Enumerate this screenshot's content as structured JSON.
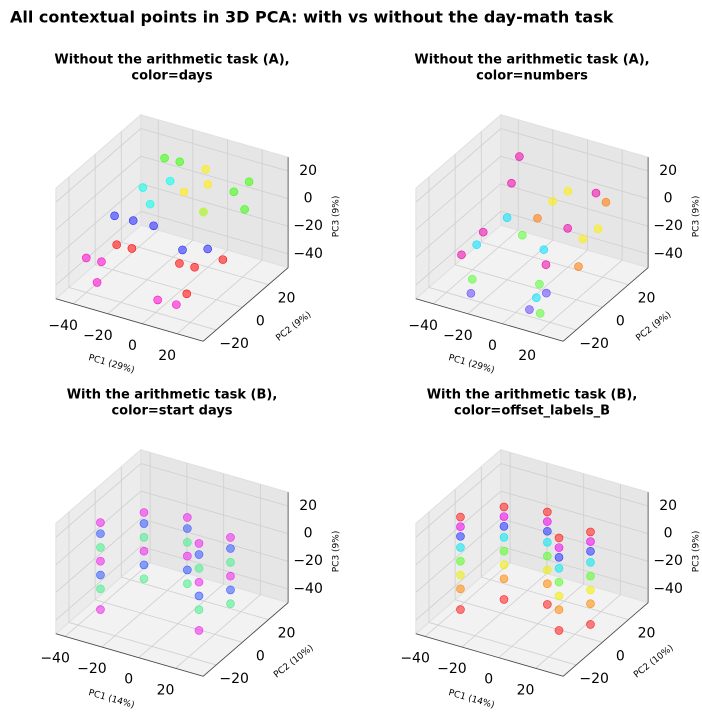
{
  "title": "All contextual points in 3D PCA: with vs without the day-math task",
  "chart_data": [
    {
      "type": "scatter3d",
      "title": [
        "Without the arithmetic task (A),",
        "color=days"
      ],
      "xlabel": "PC1 (29%)",
      "ylabel": "PC2 (9%)",
      "zlabel": "PC3 (9%)",
      "xlim": [
        -50,
        35
      ],
      "ylim": [
        -30,
        35
      ],
      "zlim": [
        -50,
        30
      ],
      "xticks": [
        {
          "value": -40,
          "label": "−40"
        },
        {
          "value": -20,
          "label": "−20"
        },
        0,
        20
      ],
      "yticks": [
        {
          "value": -20,
          "label": "−20"
        },
        0,
        20
      ],
      "zticks": [
        {
          "value": -40,
          "label": "−40"
        },
        {
          "value": -20,
          "label": "−20"
        },
        0,
        20
      ],
      "series": [
        {
          "color": "#ff0000",
          "x": [
            -30,
            -25,
            10,
            15,
            20,
            18
          ],
          "y": [
            -10,
            -5,
            -15,
            -10,
            5,
            -20
          ],
          "z": [
            -20,
            -25,
            -15,
            -20,
            -25,
            -30
          ]
        },
        {
          "color": "#ff00cc",
          "x": [
            -40,
            -35,
            5,
            12,
            -30
          ],
          "y": [
            -20,
            -15,
            -25,
            -20,
            -25
          ],
          "z": [
            -25,
            -30,
            -35,
            -40,
            -35
          ]
        },
        {
          "color": "#2020ff",
          "x": [
            -35,
            -28,
            8,
            15,
            -20
          ],
          "y": [
            -5,
            0,
            -10,
            0,
            5
          ],
          "z": [
            -5,
            -10,
            -10,
            -15,
            -15
          ]
        },
        {
          "color": "#00ffee",
          "x": [
            -30,
            -22,
            -18,
            5
          ],
          "y": [
            10,
            5,
            15,
            10
          ],
          "z": [
            5,
            0,
            10,
            0
          ]
        },
        {
          "color": "#33ff00",
          "x": [
            -25,
            -20,
            15,
            20,
            25
          ],
          "y": [
            20,
            25,
            20,
            25,
            15
          ],
          "z": [
            20,
            15,
            10,
            15,
            5
          ]
        },
        {
          "color": "#ffee00",
          "x": [
            -10,
            0,
            5,
            -5
          ],
          "y": [
            15,
            20,
            10,
            25
          ],
          "z": [
            5,
            10,
            0,
            15
          ]
        }
      ]
    },
    {
      "type": "scatter3d",
      "title": [
        "Without the arithmetic task (A),",
        "color=numbers"
      ],
      "xlabel": "PC1 (29%)",
      "ylabel": "PC2 (9%)",
      "zlabel": "PC3 (9%)",
      "xlim": [
        -50,
        35
      ],
      "ylim": [
        -30,
        35
      ],
      "zlim": [
        -50,
        30
      ],
      "xticks": [
        {
          "value": -40,
          "label": "−40"
        },
        {
          "value": -20,
          "label": "−20"
        },
        0,
        20
      ],
      "yticks": [
        {
          "value": -20,
          "label": "−20"
        },
        0,
        20
      ],
      "zticks": [
        {
          "value": -40,
          "label": "−40"
        },
        {
          "value": -20,
          "label": "−20"
        },
        0,
        20
      ],
      "series": [
        {
          "color": "#ee00aa",
          "x": [
            -35,
            -30,
            -25,
            10,
            15,
            20,
            -28
          ],
          "y": [
            -15,
            -5,
            10,
            -10,
            0,
            15,
            20
          ],
          "z": [
            -25,
            -15,
            10,
            -20,
            0,
            15,
            20
          ]
        },
        {
          "color": "#00e0ff",
          "x": [
            -30,
            -20,
            12,
            5
          ],
          "y": [
            -10,
            0,
            -20,
            -5
          ],
          "z": [
            -20,
            -5,
            -35,
            -15
          ]
        },
        {
          "color": "#ffee00",
          "x": [
            -5,
            0,
            20,
            25
          ],
          "y": [
            15,
            20,
            5,
            10
          ],
          "z": [
            0,
            5,
            -10,
            -5
          ]
        },
        {
          "color": "#55ff33",
          "x": [
            -25,
            10,
            18,
            -15
          ],
          "y": [
            -20,
            -15,
            -25,
            5
          ],
          "z": [
            -35,
            -30,
            -40,
            -20
          ]
        },
        {
          "color": "#ff7700",
          "x": [
            -10,
            25,
            22
          ],
          "y": [
            10,
            -5,
            20
          ],
          "z": [
            -10,
            -20,
            5
          ]
        },
        {
          "color": "#6644ff",
          "x": [
            -22,
            8,
            14
          ],
          "y": [
            -25,
            -20,
            -15
          ],
          "z": [
            -40,
            -45,
            -35
          ]
        }
      ]
    },
    {
      "type": "scatter3d",
      "title": [
        "With the arithmetic task (B),",
        "color=start days"
      ],
      "xlabel": "PC1 (14%)",
      "ylabel": "PC2 (10%)",
      "zlabel": "PC3 (9%)",
      "xlim": [
        -45,
        35
      ],
      "ylim": [
        -30,
        35
      ],
      "zlim": [
        -50,
        30
      ],
      "xticks": [
        {
          "value": -40,
          "label": "−40"
        },
        {
          "value": -20,
          "label": "−20"
        },
        0,
        20
      ],
      "yticks": [
        {
          "value": -20,
          "label": "−20"
        },
        0,
        20
      ],
      "zticks": [
        {
          "value": -40,
          "label": "−40"
        },
        {
          "value": -20,
          "label": "−20"
        },
        0,
        20
      ],
      "series": [
        {
          "color": "#3355ff",
          "x": [
            -35,
            -22,
            -2,
            15,
            25,
            -35,
            -22,
            -2,
            15,
            25
          ],
          "y": [
            -10,
            5,
            10,
            -5,
            5,
            -10,
            5,
            10,
            -5,
            5
          ],
          "z": [
            10,
            10,
            10,
            10,
            10,
            -20,
            -20,
            -20,
            -20,
            -20
          ]
        },
        {
          "color": "#ee22ee",
          "x": [
            -35,
            -22,
            -2,
            15,
            25,
            -35,
            -22,
            -2,
            15,
            25,
            -35,
            15
          ],
          "y": [
            -10,
            5,
            10,
            -5,
            5,
            -10,
            5,
            10,
            -5,
            5,
            -10,
            -5
          ],
          "z": [
            18,
            18,
            18,
            18,
            18,
            -10,
            -10,
            -10,
            -10,
            -10,
            -45,
            -45
          ]
        },
        {
          "color": "#44ee88",
          "x": [
            -35,
            -22,
            -2,
            15,
            25,
            -35,
            -22,
            -2,
            15,
            25
          ],
          "y": [
            -10,
            5,
            10,
            -5,
            5,
            -10,
            5,
            10,
            -5,
            5
          ],
          "z": [
            0,
            0,
            0,
            0,
            0,
            -30,
            -30,
            -30,
            -30,
            -30
          ]
        }
      ]
    },
    {
      "type": "scatter3d",
      "title": [
        "With the arithmetic task (B),",
        "color=offset_labels_B"
      ],
      "xlabel": "PC1 (14%)",
      "ylabel": "PC2 (10%)",
      "zlabel": "PC3 (9%)",
      "xlim": [
        -45,
        35
      ],
      "ylim": [
        -30,
        35
      ],
      "zlim": [
        -50,
        30
      ],
      "xticks": [
        {
          "value": -40,
          "label": "−40"
        },
        {
          "value": -20,
          "label": "−20"
        },
        0,
        20
      ],
      "yticks": [
        {
          "value": -20,
          "label": "−20"
        },
        0,
        20
      ],
      "zticks": [
        {
          "value": -40,
          "label": "−40"
        },
        {
          "value": -20,
          "label": "−20"
        },
        0,
        20
      ],
      "series": [
        {
          "color": "#ff1a1a",
          "x": [
            -35,
            -22,
            -2,
            15,
            25,
            -35,
            -22,
            -2,
            15,
            25
          ],
          "y": [
            -10,
            5,
            10,
            -5,
            5,
            -10,
            5,
            10,
            -5,
            5
          ],
          "z": [
            -45,
            -45,
            -45,
            -45,
            -45,
            22,
            22,
            22,
            22,
            22
          ]
        },
        {
          "color": "#ff8800",
          "x": [
            -35,
            -22,
            -2,
            15,
            25
          ],
          "y": [
            -10,
            5,
            10,
            -5,
            5
          ],
          "z": [
            -30,
            -30,
            -30,
            -30,
            -30
          ]
        },
        {
          "color": "#eeee00",
          "x": [
            -35,
            -22,
            -2,
            15,
            25
          ],
          "y": [
            -10,
            5,
            10,
            -5,
            5
          ],
          "z": [
            -20,
            -20,
            -20,
            -20,
            -20
          ]
        },
        {
          "color": "#55ff22",
          "x": [
            -35,
            -22,
            -2,
            15,
            25
          ],
          "y": [
            -10,
            5,
            10,
            -5,
            5
          ],
          "z": [
            -10,
            -10,
            -10,
            -10,
            -10
          ]
        },
        {
          "color": "#00e8ee",
          "x": [
            -35,
            -22,
            -2,
            15,
            25
          ],
          "y": [
            -10,
            5,
            10,
            -5,
            5
          ],
          "z": [
            0,
            0,
            0,
            0,
            0
          ]
        },
        {
          "color": "#2233ff",
          "x": [
            -35,
            -22,
            -2,
            15,
            25
          ],
          "y": [
            -10,
            5,
            10,
            -5,
            5
          ],
          "z": [
            8,
            8,
            8,
            8,
            8
          ]
        },
        {
          "color": "#ee00ee",
          "x": [
            -35,
            -22,
            -2,
            15,
            25
          ],
          "y": [
            -10,
            5,
            10,
            -5,
            5
          ],
          "z": [
            15,
            15,
            15,
            15,
            15
          ]
        }
      ]
    }
  ]
}
